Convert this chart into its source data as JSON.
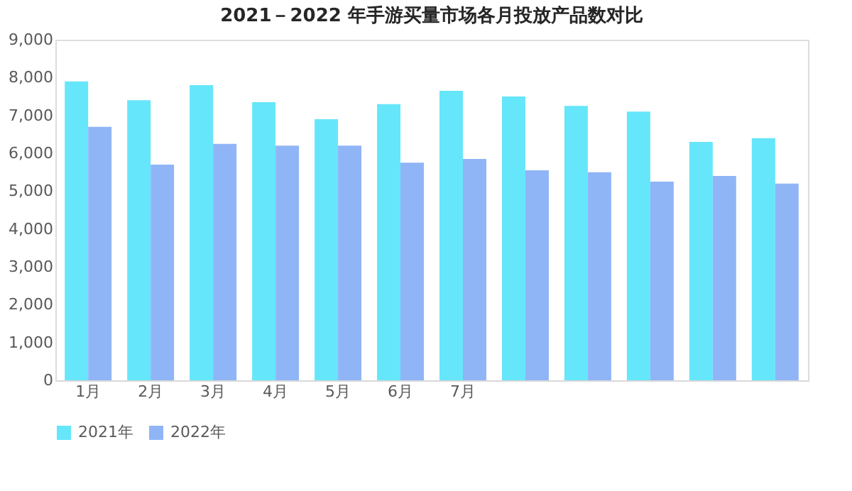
{
  "chart_data": {
    "type": "bar",
    "title": "2021－2022 年手游买量市场各月投放产品数对比",
    "categories": [
      "1月",
      "2月",
      "3月",
      "4月",
      "5月",
      "6月",
      "7月",
      null,
      null,
      null,
      null,
      null
    ],
    "series": [
      {
        "name": "2021年",
        "color": "#66e6fa",
        "values": [
          7900,
          7400,
          7800,
          7350,
          6900,
          7300,
          7650,
          7500,
          7250,
          7100,
          6300,
          6400
        ]
      },
      {
        "name": "2022年",
        "color": "#8fb5f7",
        "values": [
          6700,
          5700,
          6250,
          6200,
          6200,
          5750,
          5850,
          5550,
          5500,
          5250,
          5400,
          5200
        ]
      }
    ],
    "ylim": [
      0,
      9000
    ],
    "yticks": [
      {
        "value": 0,
        "label": "0"
      },
      {
        "value": 1000,
        "label": "1,000"
      },
      {
        "value": 2000,
        "label": "2,000"
      },
      {
        "value": 3000,
        "label": "3,000"
      },
      {
        "value": 4000,
        "label": "4,000"
      },
      {
        "value": 5000,
        "label": "5,000"
      },
      {
        "value": 6000,
        "label": "6,000"
      },
      {
        "value": 7000,
        "label": "7,000"
      },
      {
        "value": 8000,
        "label": "8,000"
      },
      {
        "value": 9000,
        "label": "9,000"
      }
    ],
    "grid": false,
    "legend": "bottom"
  }
}
